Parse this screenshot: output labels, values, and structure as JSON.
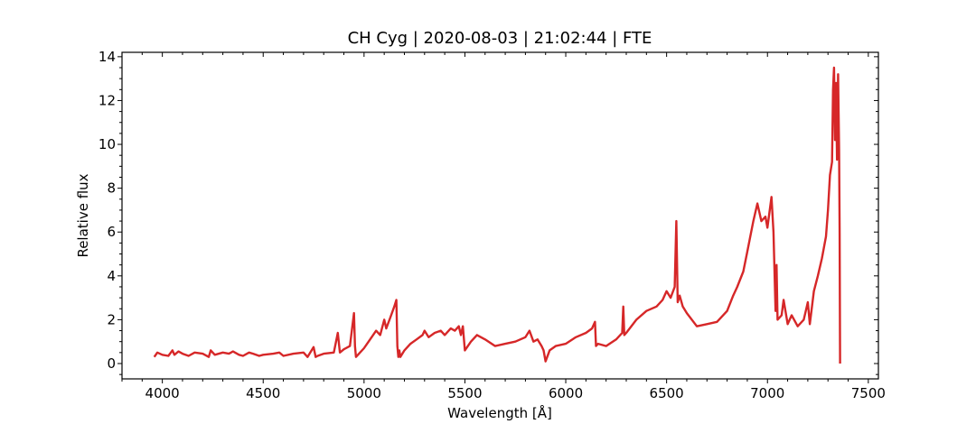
{
  "chart_data": {
    "type": "line",
    "title": "CH Cyg | 2020-08-03 | 21:02:44 | FTE",
    "xlabel": "Wavelength [Å]",
    "ylabel": "Relative flux",
    "xlim": [
      3800,
      7550
    ],
    "ylim": [
      -0.7,
      14.2
    ],
    "xticks": [
      4000,
      4500,
      5000,
      5500,
      6000,
      6500,
      7000,
      7500
    ],
    "yticks": [
      0,
      2,
      4,
      6,
      8,
      10,
      12,
      14
    ],
    "grid": false,
    "line_color": "#d62728",
    "series": [
      {
        "x": [
          3960,
          3975,
          4000,
          4030,
          4050,
          4060,
          4080,
          4100,
          4130,
          4160,
          4200,
          4230,
          4240,
          4260,
          4300,
          4330,
          4350,
          4380,
          4400,
          4430,
          4450,
          4480,
          4500,
          4550,
          4580,
          4600,
          4650,
          4700,
          4720,
          4750,
          4760,
          4770,
          4800,
          4850,
          4870,
          4880,
          4900,
          4930,
          4950,
          4955,
          4960,
          4970,
          5000,
          5030,
          5060,
          5080,
          5100,
          5110,
          5130,
          5150,
          5160,
          5165,
          5170,
          5175,
          5180,
          5200,
          5230,
          5260,
          5290,
          5300,
          5320,
          5350,
          5380,
          5400,
          5430,
          5450,
          5470,
          5480,
          5490,
          5500,
          5530,
          5560,
          5600,
          5650,
          5700,
          5750,
          5800,
          5820,
          5840,
          5860,
          5880,
          5890,
          5900,
          5920,
          5950,
          6000,
          6050,
          6100,
          6130,
          6145,
          6150,
          6160,
          6200,
          6250,
          6280,
          6285,
          6290,
          6300,
          6350,
          6400,
          6450,
          6480,
          6500,
          6520,
          6540,
          6548,
          6555,
          6565,
          6580,
          6600,
          6650,
          6700,
          6750,
          6800,
          6830,
          6850,
          6880,
          6900,
          6930,
          6950,
          6970,
          6990,
          7000,
          7020,
          7030,
          7040,
          7045,
          7050,
          7070,
          7080,
          7100,
          7120,
          7150,
          7180,
          7200,
          7210,
          7230,
          7250,
          7270,
          7290,
          7300,
          7310,
          7320,
          7325,
          7330,
          7335,
          7340,
          7345,
          7350,
          7355,
          7358,
          7360
        ],
        "y": [
          0.3,
          0.5,
          0.4,
          0.35,
          0.6,
          0.4,
          0.55,
          0.45,
          0.35,
          0.5,
          0.45,
          0.3,
          0.6,
          0.4,
          0.5,
          0.45,
          0.55,
          0.4,
          0.35,
          0.5,
          0.45,
          0.35,
          0.4,
          0.45,
          0.5,
          0.35,
          0.45,
          0.5,
          0.3,
          0.75,
          0.3,
          0.35,
          0.45,
          0.5,
          1.4,
          0.5,
          0.65,
          0.8,
          2.3,
          0.8,
          0.3,
          0.4,
          0.7,
          1.1,
          1.5,
          1.3,
          2.0,
          1.6,
          2.1,
          2.6,
          2.9,
          0.8,
          0.3,
          0.6,
          0.3,
          0.6,
          0.9,
          1.1,
          1.3,
          1.5,
          1.2,
          1.4,
          1.5,
          1.3,
          1.6,
          1.5,
          1.7,
          1.3,
          1.7,
          0.6,
          1.0,
          1.3,
          1.1,
          0.8,
          0.9,
          1.0,
          1.2,
          1.5,
          1.0,
          1.1,
          0.8,
          0.6,
          0.1,
          0.6,
          0.8,
          0.9,
          1.2,
          1.4,
          1.6,
          1.9,
          0.8,
          0.9,
          0.8,
          1.1,
          1.4,
          2.6,
          1.3,
          1.4,
          2.0,
          2.4,
          2.6,
          2.9,
          3.3,
          3.0,
          3.5,
          6.5,
          2.8,
          3.1,
          2.6,
          2.3,
          1.7,
          1.8,
          1.9,
          2.4,
          3.1,
          3.5,
          4.2,
          5.1,
          6.5,
          7.3,
          6.5,
          6.7,
          6.2,
          7.6,
          6.0,
          2.4,
          4.5,
          2.0,
          2.2,
          2.9,
          1.8,
          2.2,
          1.7,
          2.0,
          2.8,
          1.8,
          3.3,
          4.0,
          4.8,
          5.8,
          7.0,
          8.6,
          9.2,
          12.5,
          13.5,
          10.2,
          12.8,
          9.3,
          13.2,
          9.8,
          6.0,
          0.0
        ]
      }
    ]
  }
}
